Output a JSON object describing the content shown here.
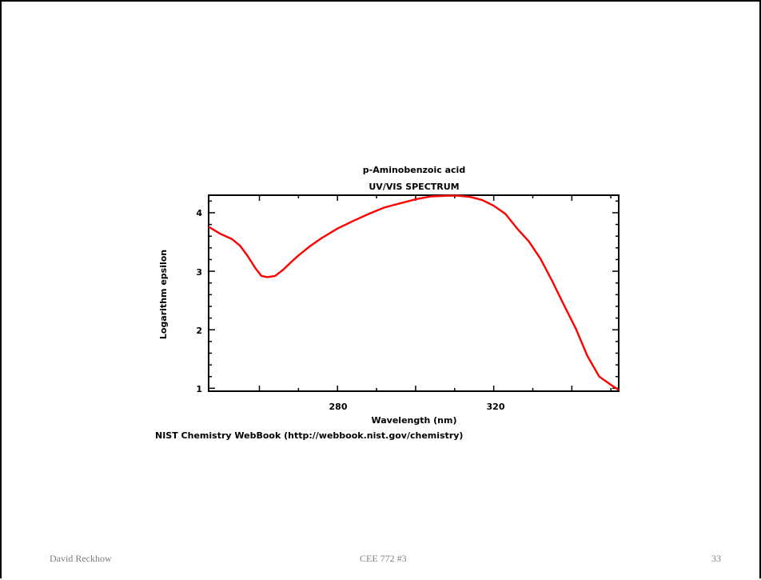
{
  "chart_data": {
    "type": "line",
    "title": "p-Aminobenzoic acid",
    "subtitle": "UV/VIS SPECTRUM",
    "xlabel": "Wavelength (nm)",
    "ylabel": "Logarithm epsilon",
    "xlim": [
      247,
      352
    ],
    "ylim": [
      0.95,
      4.3
    ],
    "xticks": [
      "280",
      "320"
    ],
    "yticks": [
      "1",
      "2",
      "3",
      "4"
    ],
    "grid": false,
    "color": "#ff0000",
    "series": [
      {
        "x": [
          247,
          250,
          253,
          255,
          257,
          259,
          260.5,
          262,
          264,
          266,
          268,
          270,
          273,
          276,
          280,
          284,
          288,
          292,
          296,
          300,
          304,
          308,
          311,
          314,
          317,
          320,
          323,
          326,
          329,
          332,
          335,
          338,
          341,
          344,
          347,
          350,
          352
        ],
        "y": [
          3.76,
          3.64,
          3.55,
          3.44,
          3.26,
          3.05,
          2.92,
          2.9,
          2.92,
          3.02,
          3.15,
          3.27,
          3.43,
          3.57,
          3.73,
          3.86,
          3.98,
          4.09,
          4.16,
          4.23,
          4.28,
          4.29,
          4.29,
          4.27,
          4.22,
          4.12,
          3.98,
          3.73,
          3.51,
          3.21,
          2.83,
          2.42,
          2.02,
          1.55,
          1.2,
          1.06,
          0.97
        ]
      }
    ]
  },
  "source_note": "NIST Chemistry WebBook (http://webbook.nist.gov/chemistry)",
  "footer": {
    "author": "David Reckhow",
    "course": "CEE 772  #3",
    "page": "33"
  }
}
